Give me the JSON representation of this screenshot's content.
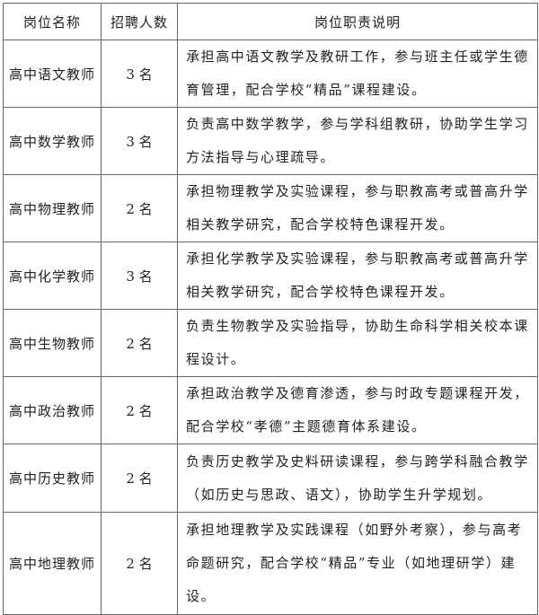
{
  "headers": [
    "岗位名称",
    "招聘人数",
    "岗位职责说明"
  ],
  "rows": [
    {
      "name": "高中语文教师",
      "count": "3 名",
      "desc": [
        "承担高中语文教学及教研工作，参与班主任或学生德",
        "育管理，配合学校“精品”课程建设。"
      ]
    },
    {
      "name": "高中数学教师",
      "count": "3 名",
      "desc": [
        "负责高中数学教学，参与学科组教研，协助学生学习",
        "方法指导与心理疏导。"
      ]
    },
    {
      "name": "高中物理教师",
      "count": "2 名",
      "desc": [
        "承担物理教学及实验课程，参与职教高考或普高升学",
        "相关教学研究，配合学校特色课程开发。"
      ]
    },
    {
      "name": "高中化学教师",
      "count": "3 名",
      "desc": [
        "承担化学教学及实验课程，参与职教高考或普高升学",
        "相关教学研究，配合学校特色课程开发。"
      ]
    },
    {
      "name": "高中生物教师",
      "count": "2 名",
      "desc": [
        "负责生物教学及实验指导，协助生命科学相关校本课",
        "程设计。"
      ]
    },
    {
      "name": "高中政治教师",
      "count": "2 名",
      "desc": [
        "承担政治教学及德育渗透，参与时政专题课程开发，",
        "配合学校“孝德”主题德育体系建设。"
      ]
    },
    {
      "name": "高中历史教师",
      "count": "2 名",
      "desc": [
        "负责历史教学及史料研读课程，参与跨学科融合教学",
        "（如历史与思政、语文），协助学生升学规划。"
      ]
    },
    {
      "name": "高中地理教师",
      "count": "2 名",
      "desc": [
        "承担地理教学及实践课程（如野外考察），参与高考",
        "命题研究，配合学校“精品”专业（如地理研学）建",
        "设。"
      ]
    }
  ]
}
